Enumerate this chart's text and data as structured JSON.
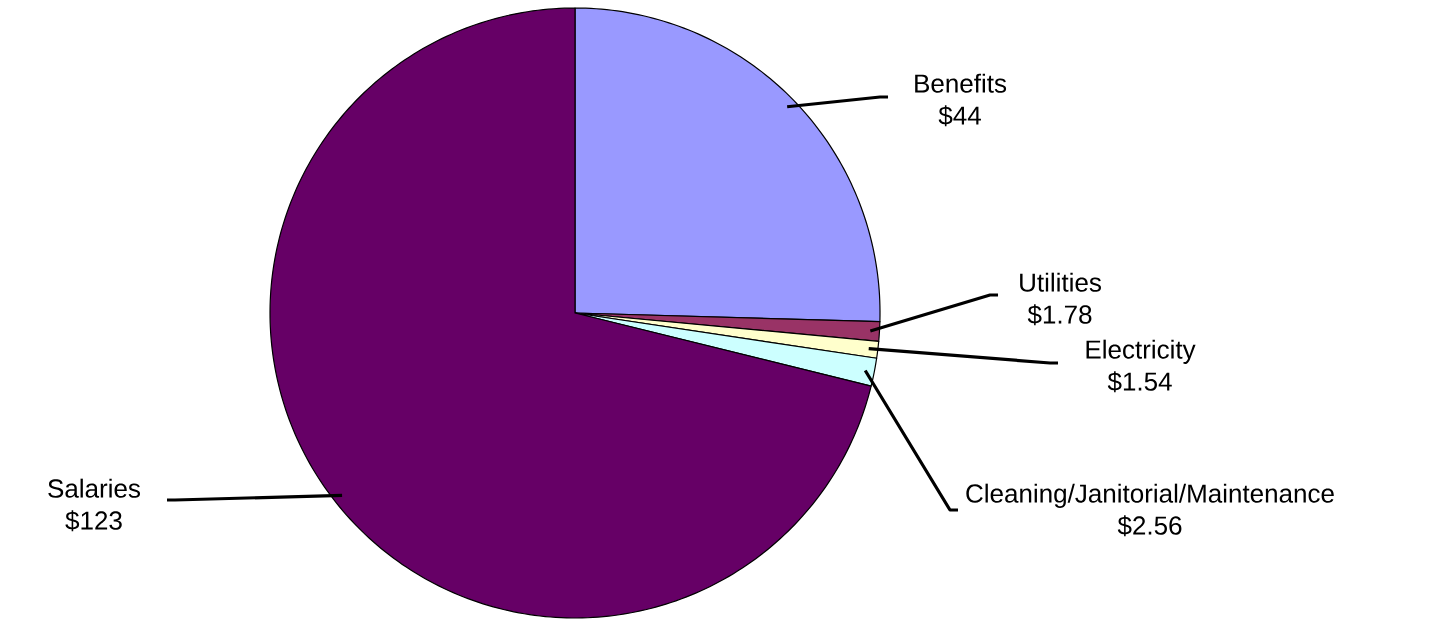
{
  "chart_data": {
    "type": "pie",
    "categories": [
      "Benefits",
      "Utilities",
      "Electricity",
      "Cleaning/Janitorial/Maintenance",
      "Salaries"
    ],
    "values": [
      44,
      1.78,
      1.54,
      2.56,
      123
    ],
    "value_labels": [
      "$44",
      "$1.78",
      "$1.54",
      "$2.56",
      "$123"
    ],
    "colors": [
      "#9999ff",
      "#993366",
      "#ffffcc",
      "#ccffff",
      "#660066"
    ],
    "legend": false
  }
}
